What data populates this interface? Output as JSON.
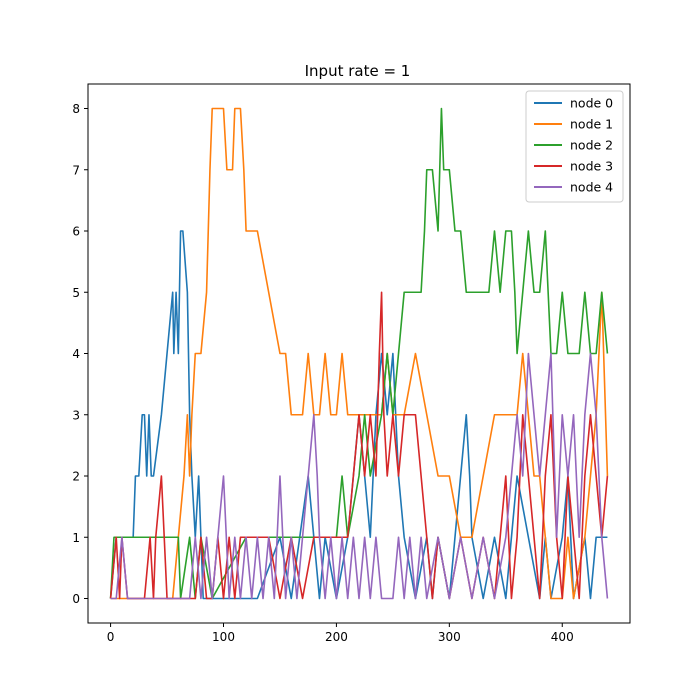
{
  "chart_data": {
    "type": "line",
    "title": "Input rate = 1",
    "xlabel": "",
    "ylabel": "",
    "xlim": [
      -20,
      460
    ],
    "ylim": [
      -0.4,
      8.4
    ],
    "xticks": [
      0,
      100,
      200,
      300,
      400
    ],
    "yticks": [
      0,
      1,
      2,
      3,
      4,
      5,
      6,
      7,
      8
    ],
    "grid": false,
    "legend_position": "top-right",
    "series": [
      {
        "name": "node 0",
        "color": "#1f77b4",
        "x": [
          0,
          5,
          20,
          22,
          25,
          28,
          30,
          32,
          34,
          36,
          38,
          45,
          50,
          55,
          56,
          58,
          60,
          62,
          64,
          68,
          70,
          72,
          75,
          78,
          80,
          82,
          90,
          100,
          130,
          150,
          160,
          175,
          180,
          185,
          190,
          200,
          210,
          220,
          225,
          230,
          235,
          240,
          245,
          250,
          255,
          260,
          270,
          280,
          285,
          290,
          300,
          310,
          315,
          318,
          320,
          330,
          340,
          350,
          355,
          360,
          370,
          380,
          385,
          390,
          400,
          405,
          410,
          420,
          425,
          430,
          440
        ],
        "y": [
          0,
          1,
          1,
          2,
          2,
          3,
          3,
          2,
          3,
          2,
          2,
          3,
          4,
          5,
          4,
          5,
          4,
          6,
          6,
          5,
          3,
          2,
          1,
          2,
          1,
          0,
          0,
          0,
          0,
          1,
          0,
          2,
          1,
          0,
          1,
          0,
          1,
          3,
          2,
          1,
          3,
          4,
          3,
          4,
          2,
          1,
          0,
          1,
          0,
          1,
          0,
          2,
          3,
          2,
          1,
          0,
          1,
          0,
          1,
          2,
          1,
          0,
          1,
          0,
          1,
          2,
          0,
          1,
          0,
          1,
          1
        ]
      },
      {
        "name": "node 1",
        "color": "#ff7f0e",
        "x": [
          0,
          20,
          40,
          55,
          60,
          65,
          68,
          70,
          72,
          75,
          80,
          85,
          88,
          90,
          95,
          100,
          103,
          108,
          110,
          115,
          118,
          120,
          125,
          130,
          140,
          150,
          155,
          160,
          170,
          175,
          180,
          185,
          190,
          195,
          200,
          205,
          210,
          215,
          220,
          225,
          230,
          235,
          240,
          245,
          250,
          260,
          270,
          280,
          290,
          300,
          310,
          320,
          330,
          340,
          345,
          350,
          355,
          360,
          365,
          370,
          375,
          380,
          385,
          390,
          395,
          400,
          405,
          410,
          420,
          425,
          430,
          435,
          440
        ],
        "y": [
          0,
          0,
          0,
          0,
          1,
          2,
          3,
          2,
          3,
          4,
          4,
          5,
          7,
          8,
          8,
          8,
          7,
          7,
          8,
          8,
          7,
          6,
          6,
          6,
          5,
          4,
          4,
          3,
          3,
          4,
          3,
          3,
          4,
          3,
          3,
          4,
          3,
          3,
          3,
          3,
          3,
          3,
          3,
          4,
          3,
          3,
          4,
          3,
          2,
          2,
          1,
          1,
          2,
          3,
          3,
          3,
          3,
          3,
          4,
          3,
          2,
          2,
          1,
          0,
          0,
          0,
          1,
          0,
          1,
          2,
          3,
          5,
          2
        ]
      },
      {
        "name": "node 2",
        "color": "#2ca02c",
        "x": [
          0,
          3,
          10,
          30,
          40,
          60,
          62,
          70,
          75,
          80,
          90,
          120,
          160,
          200,
          205,
          210,
          220,
          225,
          230,
          240,
          245,
          250,
          255,
          260,
          270,
          275,
          278,
          280,
          285,
          290,
          293,
          295,
          298,
          300,
          305,
          310,
          315,
          320,
          330,
          335,
          340,
          345,
          350,
          355,
          358,
          360,
          365,
          370,
          375,
          380,
          385,
          390,
          395,
          400,
          405,
          410,
          415,
          420,
          425,
          430,
          435,
          440
        ],
        "y": [
          0,
          1,
          1,
          1,
          1,
          1,
          0,
          1,
          0,
          1,
          0,
          1,
          1,
          1,
          2,
          1,
          2,
          3,
          2,
          3,
          4,
          3,
          4,
          5,
          5,
          5,
          6,
          7,
          7,
          6,
          8,
          7,
          7,
          7,
          6,
          6,
          5,
          5,
          5,
          5,
          6,
          5,
          6,
          6,
          5,
          4,
          5,
          6,
          5,
          5,
          6,
          4,
          4,
          5,
          4,
          4,
          4,
          5,
          4,
          4,
          5,
          4
        ]
      },
      {
        "name": "node 3",
        "color": "#d62728",
        "x": [
          0,
          5,
          8,
          10,
          15,
          20,
          25,
          30,
          35,
          38,
          40,
          45,
          50,
          60,
          75,
          80,
          85,
          90,
          95,
          100,
          105,
          110,
          115,
          120,
          130,
          140,
          150,
          160,
          170,
          180,
          190,
          200,
          210,
          215,
          220,
          225,
          230,
          235,
          238,
          240,
          242,
          245,
          250,
          255,
          260,
          270,
          275,
          280,
          285,
          290,
          300,
          310,
          320,
          330,
          340,
          345,
          350,
          355,
          360,
          365,
          370,
          375,
          380,
          385,
          390,
          395,
          400,
          405,
          410,
          415,
          420,
          425,
          430,
          435,
          440
        ],
        "y": [
          0,
          1,
          0,
          1,
          0,
          0,
          0,
          0,
          1,
          0,
          1,
          2,
          0,
          0,
          0,
          1,
          0,
          0,
          1,
          0,
          1,
          0,
          1,
          1,
          1,
          1,
          0,
          1,
          0,
          1,
          1,
          1,
          1,
          2,
          3,
          2,
          3,
          2,
          4,
          5,
          3,
          2,
          3,
          2,
          3,
          3,
          2,
          1,
          0,
          1,
          0,
          1,
          0,
          1,
          0,
          1,
          2,
          0,
          1,
          3,
          2,
          1,
          0,
          2,
          3,
          1,
          0,
          2,
          1,
          0,
          2,
          3,
          2,
          1,
          2
        ]
      },
      {
        "name": "node 4",
        "color": "#9467bd",
        "x": [
          0,
          5,
          10,
          15,
          20,
          40,
          60,
          70,
          75,
          80,
          85,
          90,
          95,
          100,
          105,
          110,
          115,
          120,
          125,
          130,
          135,
          140,
          145,
          150,
          155,
          160,
          165,
          170,
          175,
          180,
          183,
          185,
          190,
          195,
          200,
          205,
          210,
          215,
          220,
          225,
          230,
          235,
          240,
          250,
          255,
          260,
          265,
          270,
          275,
          280,
          290,
          300,
          310,
          320,
          330,
          340,
          350,
          355,
          360,
          365,
          370,
          375,
          380,
          385,
          390,
          395,
          400,
          405,
          410,
          415,
          420,
          425,
          430,
          435,
          440
        ],
        "y": [
          0,
          0,
          1,
          0,
          0,
          0,
          0,
          0,
          1,
          0,
          1,
          0,
          1,
          2,
          0,
          1,
          0,
          1,
          0,
          1,
          0,
          1,
          0,
          2,
          0,
          1,
          0,
          1,
          2,
          3,
          2,
          1,
          0,
          1,
          0,
          1,
          0,
          1,
          0,
          1,
          0,
          1,
          0,
          0,
          1,
          0,
          1,
          0,
          1,
          0,
          1,
          0,
          1,
          0,
          1,
          0,
          1,
          2,
          3,
          2,
          4,
          3,
          2,
          3,
          4,
          1,
          3,
          2,
          3,
          1,
          3,
          4,
          3,
          1,
          0
        ]
      }
    ]
  }
}
